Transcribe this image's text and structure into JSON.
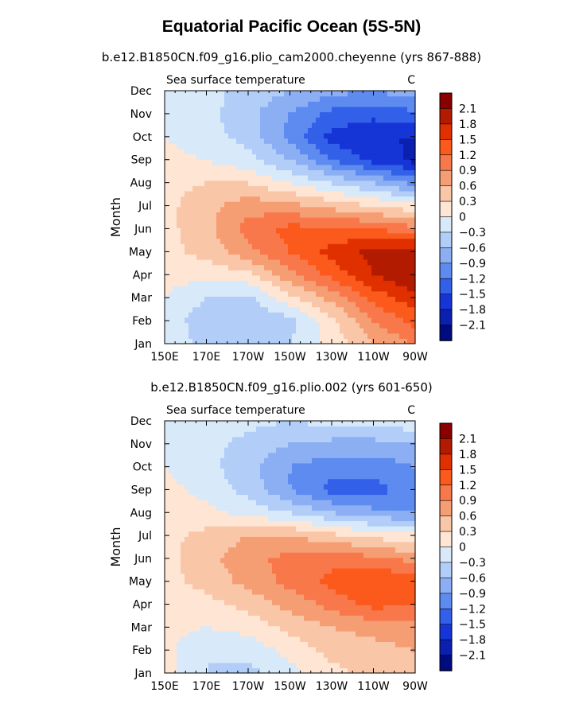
{
  "figure": {
    "title": "Equatorial Pacific Ocean (5S-5N)"
  },
  "chart_data": [
    {
      "type": "heatmap",
      "subtitle": "b.e12.B1850CN.f09_g16.plio_cam2000.cheyenne (yrs 867-888)",
      "left_label": "Sea surface temperature",
      "right_label": "C",
      "ylabel": "Month",
      "xlabel": "",
      "x_ticks": [
        "150E",
        "170E",
        "170W",
        "150W",
        "130W",
        "110W",
        "90W"
      ],
      "y_ticks": [
        "Jan",
        "Feb",
        "Mar",
        "Apr",
        "May",
        "Jun",
        "Jul",
        "Aug",
        "Sep",
        "Oct",
        "Nov",
        "Dec"
      ],
      "x_range": [
        "150E",
        "90W"
      ],
      "y_range": [
        "Jan",
        "Dec"
      ],
      "colorbar_labels": [
        "2.1",
        "1.8",
        "1.5",
        "1.2",
        "0.9",
        "0.6",
        "0.3",
        "0",
        "−0.3",
        "−0.6",
        "−0.9",
        "−1.2",
        "−1.5",
        "−1.8",
        "−2.1"
      ],
      "colorbar_colors": [
        "#8a0000",
        "#b31b00",
        "#e03000",
        "#fb5a1c",
        "#f8784b",
        "#f69e73",
        "#fac6a8",
        "#fee5d4",
        "#d8e9f9",
        "#b1cdf8",
        "#8caff4",
        "#5d8bf0",
        "#3360e8",
        "#1535d6",
        "#0b1fb1",
        "#000b7f"
      ],
      "notes": "Anomaly pattern: warm anomaly (up to ~2.1) peaking Apr-May near 90W, extending west along Jun-Jul; cold anomaly (down to ~-2.1) peaking Sep-Oct near 100W; weak cold anomaly Jan-Mar near 170E-150W.",
      "field": {
        "months": [
          1,
          2,
          3,
          4,
          5,
          6,
          7,
          8,
          9,
          10,
          11,
          12
        ],
        "longitudes_east": [
          150,
          170,
          190,
          210,
          230,
          250,
          270
        ],
        "values": [
          [
            -0.1,
            -0.4,
            -0.5,
            -0.3,
            0.1,
            0.6,
            0.9
          ],
          [
            -0.1,
            -0.5,
            -0.6,
            -0.4,
            0.2,
            0.9,
            1.3
          ],
          [
            0.0,
            -0.3,
            -0.4,
            0.2,
            0.7,
            1.3,
            1.7
          ],
          [
            0.1,
            0.1,
            0.2,
            0.8,
            1.3,
            1.8,
            2.1
          ],
          [
            0.2,
            0.4,
            0.8,
            1.2,
            1.6,
            1.9,
            2.0
          ],
          [
            0.2,
            0.5,
            1.0,
            1.3,
            1.3,
            1.2,
            1.0
          ],
          [
            0.2,
            0.5,
            0.8,
            0.7,
            0.5,
            0.3,
            0.1
          ],
          [
            0.2,
            0.3,
            0.3,
            0.0,
            -0.3,
            -0.6,
            -1.0
          ],
          [
            0.1,
            0.0,
            -0.2,
            -0.6,
            -1.2,
            -1.6,
            -1.9
          ],
          [
            0.0,
            -0.2,
            -0.4,
            -1.0,
            -1.6,
            -1.8,
            -1.8
          ],
          [
            -0.1,
            -0.2,
            -0.5,
            -0.9,
            -1.3,
            -1.4,
            -1.3
          ],
          [
            -0.1,
            -0.2,
            -0.4,
            -0.6,
            -0.8,
            -0.9,
            -0.7
          ]
        ]
      }
    },
    {
      "type": "heatmap",
      "subtitle": "b.e12.B1850CN.f09_g16.plio.002 (yrs 601-650)",
      "left_label": "Sea surface temperature",
      "right_label": "C",
      "ylabel": "Month",
      "xlabel": "",
      "x_ticks": [
        "150E",
        "170E",
        "170W",
        "150W",
        "130W",
        "110W",
        "90W"
      ],
      "y_ticks": [
        "Jan",
        "Feb",
        "Mar",
        "Apr",
        "May",
        "Jun",
        "Jul",
        "Aug",
        "Sep",
        "Oct",
        "Nov",
        "Dec"
      ],
      "x_range": [
        "150E",
        "90W"
      ],
      "y_range": [
        "Jan",
        "Dec"
      ],
      "colorbar_labels": [
        "2.1",
        "1.8",
        "1.5",
        "1.2",
        "0.9",
        "0.6",
        "0.3",
        "0",
        "−0.3",
        "−0.6",
        "−0.9",
        "−1.2",
        "−1.5",
        "−1.8",
        "−2.1"
      ],
      "colorbar_colors": [
        "#8a0000",
        "#b31b00",
        "#e03000",
        "#fb5a1c",
        "#f8784b",
        "#f69e73",
        "#fac6a8",
        "#fee5d4",
        "#d8e9f9",
        "#b1cdf8",
        "#8caff4",
        "#5d8bf0",
        "#3360e8",
        "#1535d6",
        "#0b1fb1",
        "#000b7f"
      ],
      "notes": "Weaker seasonal cycle: warm anomaly up to ~1.5 in Apr-May near 110W-90W; cold anomaly to ~-1.5 in Sep near 120W; weak cold Jan-Feb near 170E-170W.",
      "field": {
        "months": [
          1,
          2,
          3,
          4,
          5,
          6,
          7,
          8,
          9,
          10,
          11,
          12
        ],
        "longitudes_east": [
          150,
          170,
          190,
          210,
          230,
          250,
          270
        ],
        "values": [
          [
            0.1,
            -0.3,
            -0.4,
            -0.1,
            0.2,
            0.4,
            0.5
          ],
          [
            0.1,
            -0.3,
            -0.2,
            0.1,
            0.4,
            0.5,
            0.6
          ],
          [
            0.1,
            0.0,
            0.1,
            0.4,
            0.6,
            0.7,
            0.8
          ],
          [
            0.2,
            0.2,
            0.4,
            0.7,
            1.0,
            1.3,
            1.2
          ],
          [
            0.2,
            0.4,
            0.7,
            1.0,
            1.3,
            1.5,
            1.4
          ],
          [
            0.2,
            0.5,
            0.8,
            1.0,
            1.1,
            1.0,
            0.8
          ],
          [
            0.2,
            0.4,
            0.6,
            0.6,
            0.4,
            0.2,
            0.1
          ],
          [
            0.2,
            0.1,
            -0.1,
            -0.3,
            -0.6,
            -0.8,
            -0.9
          ],
          [
            0.1,
            -0.1,
            -0.4,
            -0.9,
            -1.3,
            -1.3,
            -1.1
          ],
          [
            0.0,
            -0.2,
            -0.5,
            -0.9,
            -1.1,
            -1.1,
            -0.9
          ],
          [
            -0.1,
            -0.2,
            -0.4,
            -0.6,
            -0.7,
            -0.7,
            -0.6
          ],
          [
            -0.1,
            -0.1,
            -0.2,
            -0.3,
            -0.2,
            -0.2,
            -0.1
          ]
        ]
      }
    }
  ]
}
